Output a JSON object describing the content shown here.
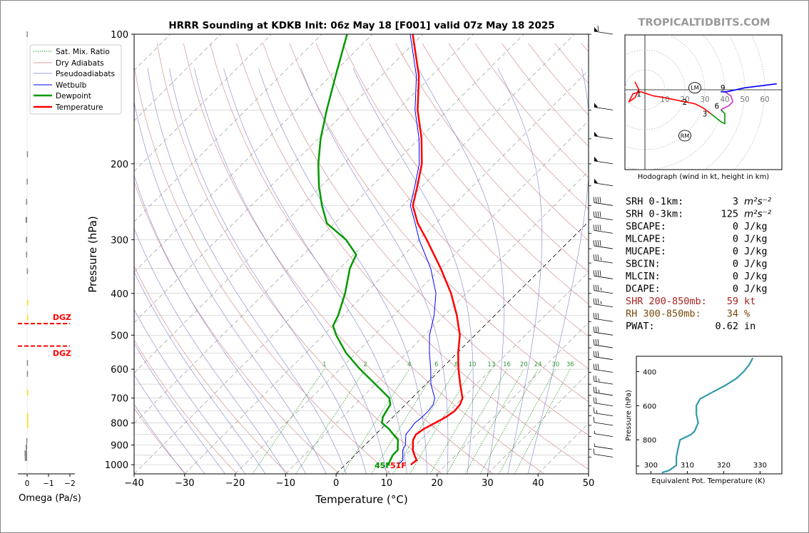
{
  "title": "HRRR Sounding at KDKB Init: 06z May 18 [F001] valid 07z May 18 2025",
  "watermark": "TROPICALTIDBITS.COM",
  "chart_data": [
    {
      "type": "line",
      "name": "skewt",
      "xlabel": "Temperature (°C)",
      "ylabel": "Pressure (hPa)",
      "xlim": [
        -40,
        50
      ],
      "ylim": [
        1050,
        100
      ],
      "xticks": [
        "−40",
        "−30",
        "−20",
        "−10",
        "0",
        "10",
        "20",
        "30",
        "40",
        "50"
      ],
      "yticks": [
        "100",
        "200",
        "300",
        "400",
        "500",
        "600",
        "700",
        "800",
        "900",
        "1000"
      ],
      "skew": "log-pressure, 45 degrees",
      "grid": true,
      "legend_position": "top-left",
      "legend": [
        "Sat. Mix. Ratio",
        "Dry Adiabats",
        "Pseudoadiabats",
        "Wetbulb",
        "Dewpoint",
        "Temperature"
      ],
      "mixing_ratio_labels": [
        "1",
        "2",
        "4",
        "6",
        "8",
        "10",
        "13",
        "16",
        "20",
        "24",
        "30",
        "36"
      ],
      "surface_dewpoint_label": "45F",
      "surface_temperature_label": "51F",
      "colors": {
        "temperature": "#ff0000",
        "dewpoint": "#009900",
        "wetbulb": "#0000ff",
        "dry_adiabat": "#d08080",
        "moist_adiabat": "#8080d0",
        "mixing_ratio": "#008800",
        "isotherm": "#999999"
      },
      "series": [
        {
          "name": "Temperature",
          "points": [
            [
              1000,
              13.0
            ],
            [
              975,
              13.2
            ],
            [
              950,
              11.8
            ],
            [
              925,
              10.5
            ],
            [
              900,
              9.5
            ],
            [
              875,
              8.5
            ],
            [
              850,
              8.0
            ],
            [
              825,
              8.5
            ],
            [
              800,
              9.5
            ],
            [
              775,
              10.5
            ],
            [
              750,
              11.0
            ],
            [
              725,
              10.8
            ],
            [
              700,
              10.0
            ],
            [
              650,
              6.8
            ],
            [
              600,
              3.5
            ],
            [
              550,
              0.2
            ],
            [
              500,
              -3.0
            ],
            [
              450,
              -7.5
            ],
            [
              400,
              -13.0
            ],
            [
              350,
              -20.0
            ],
            [
              300,
              -28.5
            ],
            [
              275,
              -33.5
            ],
            [
              250,
              -38.0
            ],
            [
              225,
              -41.0
            ],
            [
              200,
              -44.5
            ],
            [
              175,
              -49.5
            ],
            [
              150,
              -56.0
            ],
            [
              125,
              -62.5
            ],
            [
              100,
              -72.0
            ]
          ]
        },
        {
          "name": "Dewpoint",
          "points": [
            [
              1000,
              8.5
            ],
            [
              975,
              8.0
            ],
            [
              950,
              7.5
            ],
            [
              925,
              7.5
            ],
            [
              900,
              6.5
            ],
            [
              875,
              5.5
            ],
            [
              850,
              3.5
            ],
            [
              825,
              1.5
            ],
            [
              800,
              -1.0
            ],
            [
              775,
              -2.0
            ],
            [
              750,
              -2.5
            ],
            [
              725,
              -3.0
            ],
            [
              700,
              -4.5
            ],
            [
              650,
              -10.0
            ],
            [
              600,
              -16.0
            ],
            [
              550,
              -22.0
            ],
            [
              500,
              -27.5
            ],
            [
              475,
              -30.0
            ],
            [
              450,
              -31.0
            ],
            [
              400,
              -34.0
            ],
            [
              350,
              -38.0
            ],
            [
              325,
              -39.5
            ],
            [
              300,
              -44.5
            ],
            [
              275,
              -51.5
            ],
            [
              250,
              -56.0
            ],
            [
              225,
              -60.5
            ],
            [
              200,
              -65.0
            ],
            [
              175,
              -69.5
            ],
            [
              150,
              -74.0
            ],
            [
              125,
              -79.0
            ],
            [
              100,
              -85.0
            ]
          ]
        },
        {
          "name": "Wetbulb",
          "points": [
            [
              1000,
              10.5
            ],
            [
              975,
              10.5
            ],
            [
              950,
              9.5
            ],
            [
              925,
              8.5
            ],
            [
              900,
              8.0
            ],
            [
              875,
              7.0
            ],
            [
              850,
              6.0
            ],
            [
              825,
              5.8
            ],
            [
              800,
              5.5
            ],
            [
              775,
              5.8
            ],
            [
              750,
              5.8
            ],
            [
              725,
              5.5
            ],
            [
              700,
              4.5
            ],
            [
              650,
              1.0
            ],
            [
              600,
              -2.0
            ],
            [
              550,
              -5.5
            ],
            [
              500,
              -9.0
            ],
            [
              450,
              -12.0
            ],
            [
              400,
              -16.0
            ],
            [
              350,
              -22.0
            ],
            [
              300,
              -30.0
            ],
            [
              275,
              -34.0
            ],
            [
              250,
              -38.5
            ],
            [
              225,
              -41.5
            ],
            [
              200,
              -45.0
            ],
            [
              175,
              -50.0
            ],
            [
              150,
              -56.5
            ],
            [
              125,
              -63.0
            ],
            [
              100,
              -72.5
            ]
          ]
        }
      ]
    },
    {
      "type": "line",
      "name": "hodograph",
      "title": "Hodograph (wind in kt, height in km)",
      "ring_labels": [
        "10",
        "20",
        "30",
        "40",
        "50",
        "60"
      ],
      "storm_motion_labels": [
        "LM",
        "RM"
      ],
      "height_labels": [
        "1",
        "2",
        "3",
        "6",
        "9"
      ],
      "series": [
        {
          "name": "0-1 km",
          "color": "#ff0000",
          "points": [
            [
              -5,
              4
            ],
            [
              -3,
              0
            ],
            [
              -5,
              -4
            ],
            [
              -8,
              -6
            ],
            [
              -6,
              -2
            ],
            [
              -2,
              -1
            ],
            [
              4,
              -3
            ],
            [
              10,
              -4
            ],
            [
              20,
              -6
            ]
          ]
        },
        {
          "name": "1-3 km",
          "color": "#ff0000",
          "points": [
            [
              20,
              -6
            ],
            [
              25,
              -7
            ],
            [
              29,
              -9
            ],
            [
              33,
              -12
            ]
          ]
        },
        {
          "name": "3-6 km",
          "color": "#009900",
          "points": [
            [
              33,
              -12
            ],
            [
              38,
              -16
            ],
            [
              40,
              -17
            ],
            [
              40,
              -12
            ],
            [
              38,
              -10
            ]
          ]
        },
        {
          "name": "6-9 km",
          "color": "#cc33cc",
          "points": [
            [
              38,
              -10
            ],
            [
              42,
              -8
            ],
            [
              44,
              -6
            ],
            [
              43,
              -3
            ],
            [
              40,
              -1
            ],
            [
              38,
              -1
            ]
          ]
        },
        {
          "name": "9+ km",
          "color": "#0000ff",
          "points": [
            [
              38,
              -1
            ],
            [
              41,
              -1
            ],
            [
              50,
              1
            ],
            [
              58,
              2
            ],
            [
              66,
              3
            ]
          ]
        }
      ],
      "storm_motion_kt": {
        "LM": [
          25,
          1
        ],
        "RM": [
          20,
          -23
        ]
      }
    },
    {
      "type": "line",
      "name": "theta_e",
      "xlabel": "Equivalent Pot. Temperature (K)",
      "ylabel": "Pressure (hPa)",
      "xticks": [
        "300",
        "310",
        "320",
        "330"
      ],
      "yticks": [
        "400",
        "600",
        "800"
      ],
      "xlim": [
        296,
        336
      ],
      "ylim": [
        1000,
        310
      ],
      "color": "#3399aa",
      "points": [
        [
          993,
          303
        ],
        [
          980,
          305
        ],
        [
          950,
          307
        ],
        [
          900,
          307
        ],
        [
          850,
          307.5
        ],
        [
          800,
          308
        ],
        [
          770,
          311
        ],
        [
          750,
          312
        ],
        [
          700,
          313
        ],
        [
          650,
          312.5
        ],
        [
          600,
          312.5
        ],
        [
          560,
          313.5
        ],
        [
          520,
          317
        ],
        [
          480,
          320.5
        ],
        [
          440,
          323.5
        ],
        [
          400,
          325.5
        ],
        [
          360,
          327
        ],
        [
          320,
          328
        ]
      ]
    },
    {
      "type": "bar",
      "name": "omega",
      "xlabel": "Omega (Pa/s)",
      "xticks": [
        "0",
        "−1",
        "−2"
      ],
      "dgz_label": "DGZ",
      "dgz_pressures": [
        470,
        530
      ],
      "levels": [
        [
          100,
          0.02,
          "#888888"
        ],
        [
          190,
          0.01,
          "#888888"
        ],
        [
          220,
          0.02,
          "#888888"
        ],
        [
          245,
          0.05,
          "#888888"
        ],
        [
          270,
          0.07,
          "#888888"
        ],
        [
          300,
          0.06,
          "#888888"
        ],
        [
          325,
          0.05,
          "#888888"
        ],
        [
          355,
          0.01,
          "#888888"
        ],
        [
          420,
          0.0,
          "#ffdd00"
        ],
        [
          455,
          0.0,
          "#ffdd00"
        ],
        [
          580,
          0.01,
          "#888888"
        ],
        [
          615,
          0.01,
          "#888888"
        ],
        [
          680,
          0.0,
          "#ffdd00"
        ],
        [
          770,
          -0.02,
          "#ffdd00"
        ],
        [
          790,
          -0.03,
          "#ffdd00"
        ],
        [
          810,
          -0.02,
          "#ffdd00"
        ],
        [
          880,
          0.04,
          "#888888"
        ],
        [
          910,
          0.07,
          "#888888"
        ],
        [
          940,
          0.12,
          "#888888"
        ],
        [
          965,
          0.11,
          "#888888"
        ]
      ]
    }
  ],
  "indices": [
    {
      "label": "SRH 0-1km:",
      "value": "3",
      "unit": "m²s⁻²",
      "color": "#000000"
    },
    {
      "label": "SRH 0-3km:",
      "value": "125",
      "unit": "m²s⁻²",
      "color": "#000000"
    },
    {
      "label": "SBCAPE:",
      "value": "0",
      "unit": "J/kg",
      "color": "#000000"
    },
    {
      "label": "MLCAPE:",
      "value": "0",
      "unit": "J/kg",
      "color": "#000000"
    },
    {
      "label": "MUCAPE:",
      "value": "0",
      "unit": "J/kg",
      "color": "#000000"
    },
    {
      "label": "SBCIN:",
      "value": "0",
      "unit": "J/kg",
      "color": "#000000"
    },
    {
      "label": "MLCIN:",
      "value": "0",
      "unit": "J/kg",
      "color": "#000000"
    },
    {
      "label": "DCAPE:",
      "value": "0",
      "unit": "J/kg",
      "color": "#000000"
    },
    {
      "label": "SHR 200-850mb:",
      "value": "59",
      "unit": "kt",
      "color": "#aa2222"
    },
    {
      "label": "RH 300-850mb:",
      "value": "34",
      "unit": "%",
      "color": "#7a4a0a"
    },
    {
      "label": "PWAT:",
      "value": "0.62",
      "unit": "in",
      "color": "#000000"
    }
  ],
  "wind_barbs": [
    {
      "p": 100,
      "kt": 60
    },
    {
      "p": 150,
      "kt": 50
    },
    {
      "p": 175,
      "kt": 50
    },
    {
      "p": 200,
      "kt": 50
    },
    {
      "p": 225,
      "kt": 50
    },
    {
      "p": 250,
      "kt": 40
    },
    {
      "p": 270,
      "kt": 40
    },
    {
      "p": 290,
      "kt": 40
    },
    {
      "p": 315,
      "kt": 40
    },
    {
      "p": 340,
      "kt": 35
    },
    {
      "p": 370,
      "kt": 40
    },
    {
      "p": 400,
      "kt": 35
    },
    {
      "p": 430,
      "kt": 35
    },
    {
      "p": 465,
      "kt": 30
    },
    {
      "p": 500,
      "kt": 30
    },
    {
      "p": 535,
      "kt": 30
    },
    {
      "p": 570,
      "kt": 30
    },
    {
      "p": 610,
      "kt": 30
    },
    {
      "p": 650,
      "kt": 25
    },
    {
      "p": 690,
      "kt": 25
    },
    {
      "p": 730,
      "kt": 20
    },
    {
      "p": 770,
      "kt": 15
    },
    {
      "p": 810,
      "kt": 10
    },
    {
      "p": 860,
      "kt": 5
    },
    {
      "p": 920,
      "kt": 5
    },
    {
      "p": 960,
      "kt": 10
    }
  ]
}
